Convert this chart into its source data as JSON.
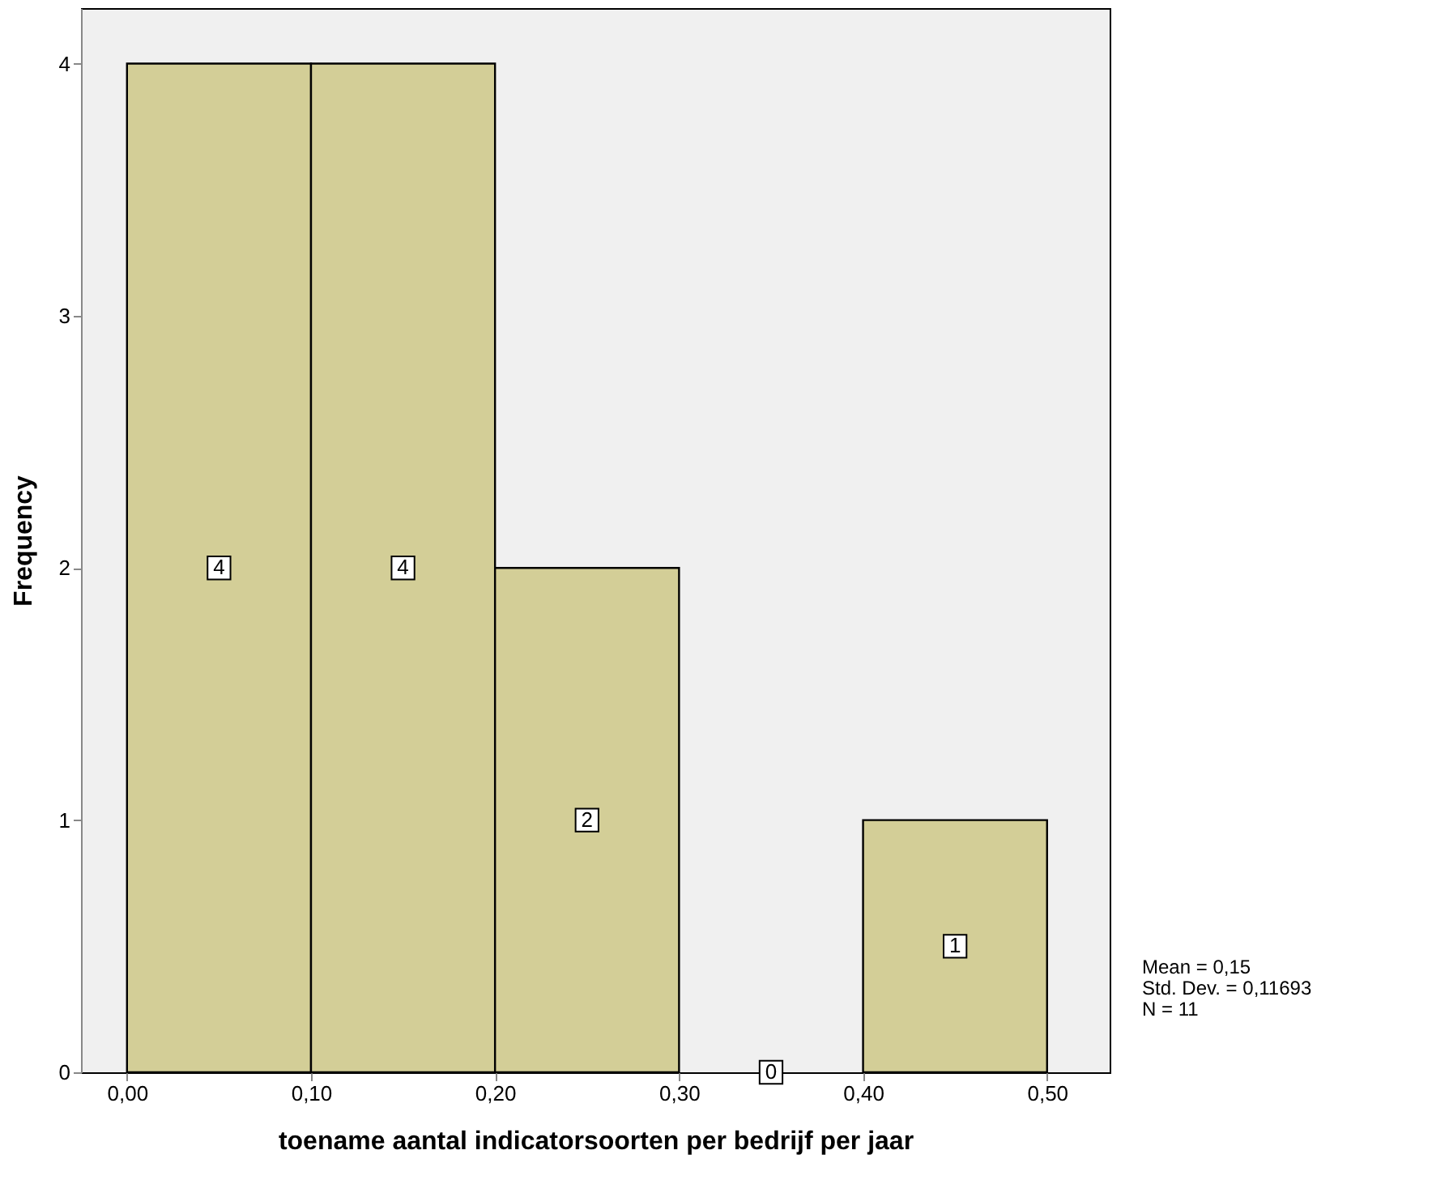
{
  "chart_data": {
    "type": "histogram",
    "xlabel": "toename aantal indicatorsoorten per bedrijf per jaar",
    "ylabel": "Frequency",
    "bins": [
      0,
      0.1,
      0.2,
      0.3,
      0.4,
      0.5
    ],
    "values": [
      4,
      4,
      2,
      0,
      1
    ],
    "color": "#d3ce97",
    "data_labels": true,
    "xlim": [
      -0.025,
      0.534
    ],
    "ylim": [
      0,
      4.22
    ],
    "xticks": [
      {
        "value": 0,
        "label": "0,00"
      },
      {
        "value": 0.1,
        "label": "0,10"
      },
      {
        "value": 0.2,
        "label": "0,20"
      },
      {
        "value": 0.3,
        "label": "0,30"
      },
      {
        "value": 0.4,
        "label": "0,40"
      },
      {
        "value": 0.5,
        "label": "0,50"
      }
    ],
    "yticks": [
      0,
      1,
      2,
      3,
      4
    ],
    "grid": false,
    "annotations": [
      "Mean = 0,15",
      "Std. Dev. = 0,11693",
      "N = 11"
    ]
  }
}
